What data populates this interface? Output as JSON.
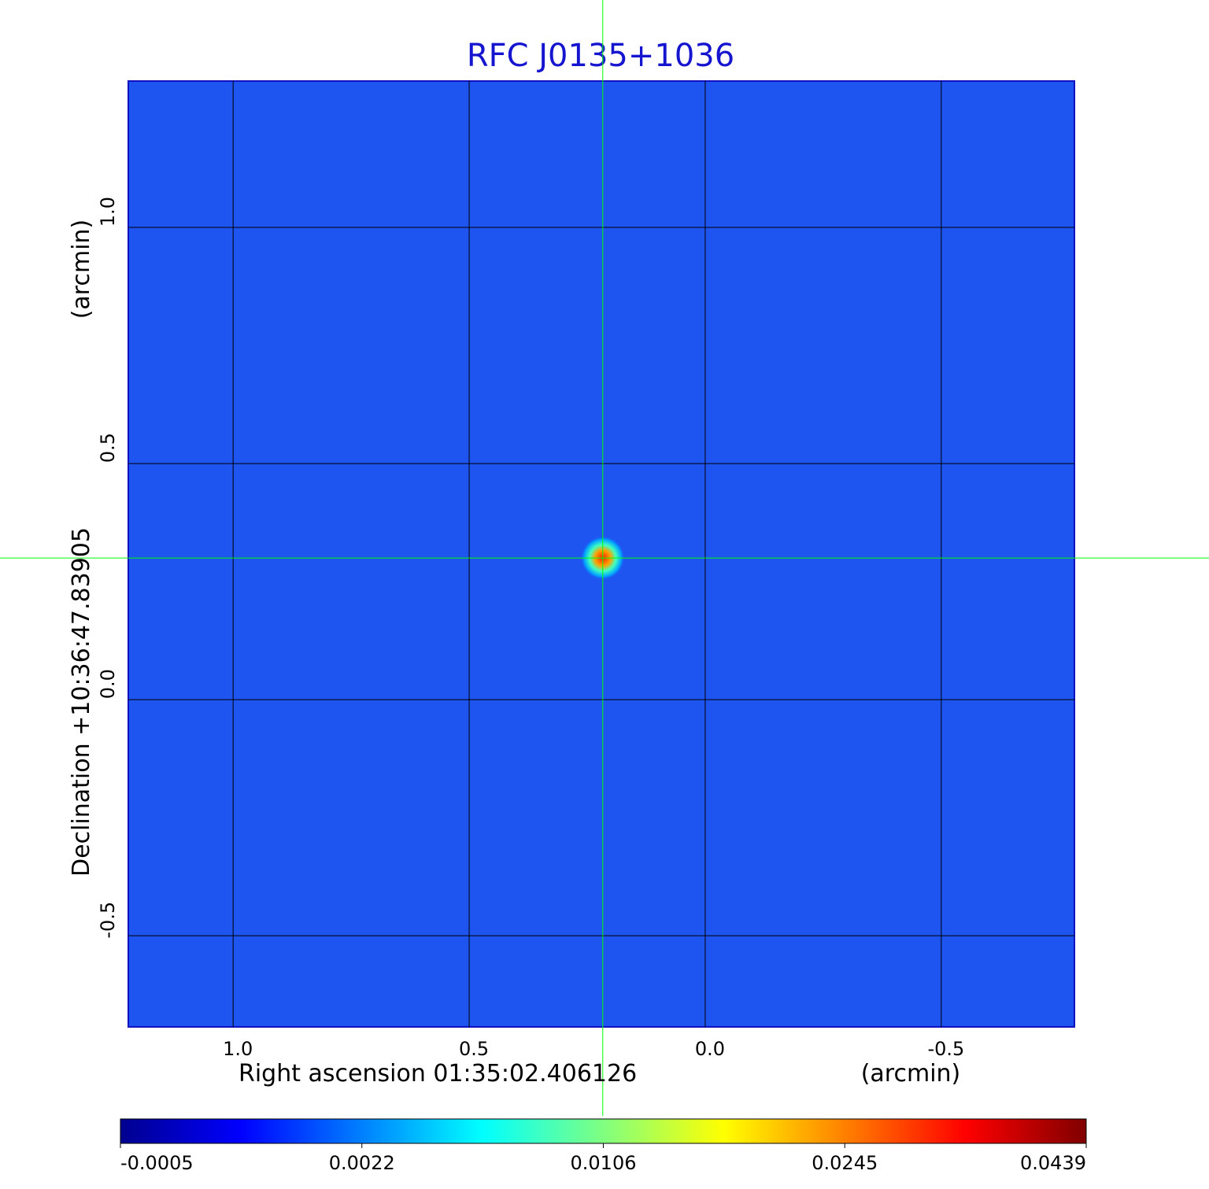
{
  "chart_data": {
    "type": "image",
    "title": "RFC J0135+1036",
    "x_label": "Right ascension  01:35:02.406126",
    "x_unit": "(arcmin)",
    "y_label": "Declination  +10:36:47.83905",
    "y_unit": "(arcmin)",
    "xlim": [
      1.222,
      -0.782
    ],
    "ylim": [
      -0.693,
      1.31
    ],
    "xticks": [
      {
        "value": 1,
        "label": "1.0"
      },
      0.5,
      {
        "value": 0,
        "label": "0.0"
      },
      -0.5
    ],
    "yticks": [
      {
        "value": 1,
        "label": "1.0"
      },
      0.5,
      {
        "value": 0,
        "label": "0.0"
      },
      -0.5
    ],
    "grid": true,
    "grid_color": "#000000",
    "background_color": "#1e55f0",
    "title_color": "#1515d0",
    "crosshair_color": "#00ff00",
    "source": {
      "x": 0.217,
      "y": 0.3,
      "peak": 0.0439
    },
    "colormap": [
      "#00008f",
      "#0000ff",
      "#0080ff",
      "#00ffff",
      "#80ff80",
      "#ffff00",
      "#ff8000",
      "#ff0000",
      "#800000"
    ],
    "colorbar_ticks": [
      -0.0005,
      0.0022,
      0.0106,
      0.0245,
      0.0439
    ]
  }
}
